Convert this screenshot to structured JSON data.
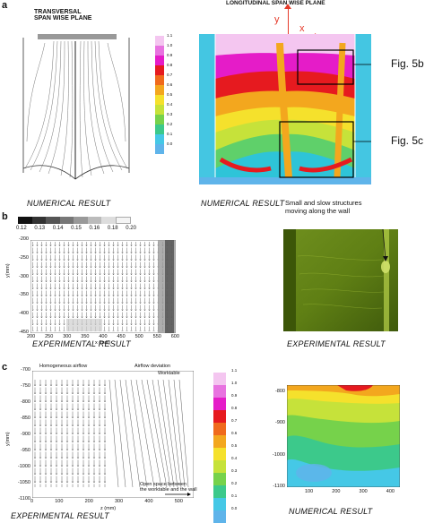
{
  "panels": {
    "a": {
      "label": "a",
      "left_title_line1": "TRANSVERSAL",
      "left_title_line2": "SPAN WISE PLANE",
      "right_title": "LONGITUDINAL SPAN WISE PLANE",
      "axis_y": "y",
      "axis_x": "x",
      "fig_label_top": "Fig. 5b",
      "fig_label_bottom": "Fig. 5c",
      "caption_left": "NUMERICAL RESULT",
      "caption_right": "NUMERICAL RESULT",
      "scale_ticks": [
        "1.1",
        "1.0",
        "0.9",
        "0.8",
        "0.7",
        "0.6",
        "0.5",
        "0.4",
        "0.3",
        "0.2",
        "0.1",
        "0.0"
      ]
    },
    "b": {
      "label": "b",
      "colorbar_ticks": [
        "0.12",
        "0.13",
        "0.14",
        "0.15",
        "0.16",
        "0.18",
        "0.20"
      ],
      "y_ticks": [
        "-200",
        "-250",
        "-300",
        "-350",
        "-400",
        "-450"
      ],
      "y_label": "y(mm)",
      "x_ticks": [
        "200",
        "250",
        "300",
        "350",
        "400",
        "450",
        "500",
        "550",
        "600"
      ],
      "x_label": "x (mm)",
      "annotation_line1": "Small and slow structures",
      "annotation_line2": "moving along the wall",
      "caption_left": "EXPERIMENTAL RESULT",
      "caption_right": "EXPERIMENTAL RESULT"
    },
    "c": {
      "label": "c",
      "note_left": "Homogeneous airflow",
      "note_right": "Airflow deviation",
      "note_bottom_line1": "Open space between",
      "note_bottom_line2": "the worktable and the wall",
      "note_worktable": "Worktable",
      "y_ticks": [
        "-700",
        "-750",
        "-800",
        "-850",
        "-900",
        "-950",
        "-1000",
        "-1050",
        "-1100"
      ],
      "y_label": "y(mm)",
      "x_ticks": [
        "0",
        "100",
        "200",
        "300",
        "400",
        "500"
      ],
      "x_label": "z (mm)",
      "scale_ticks": [
        "1.1",
        "1.0",
        "0.9",
        "0.8",
        "0.7",
        "0.6",
        "0.5",
        "0.4",
        "0.3",
        "0.2",
        "0.1",
        "0.0"
      ],
      "right_y_ticks": [
        "-800",
        "-900",
        "-1000",
        "-1100"
      ],
      "right_x_ticks": [
        "100",
        "200",
        "300",
        "400"
      ],
      "caption_left": "EXPERIMENTAL RESULT",
      "caption_right": "NUMERICAL RESULT"
    }
  },
  "colors": {
    "scale": [
      "#f4c6f0",
      "#e873e0",
      "#e51cc8",
      "#e61a1f",
      "#f06a1c",
      "#f3a71e",
      "#f5e12c",
      "#c6e23a",
      "#76d24b",
      "#3cc98b",
      "#45c8e6",
      "#5fb4ea"
    ]
  }
}
